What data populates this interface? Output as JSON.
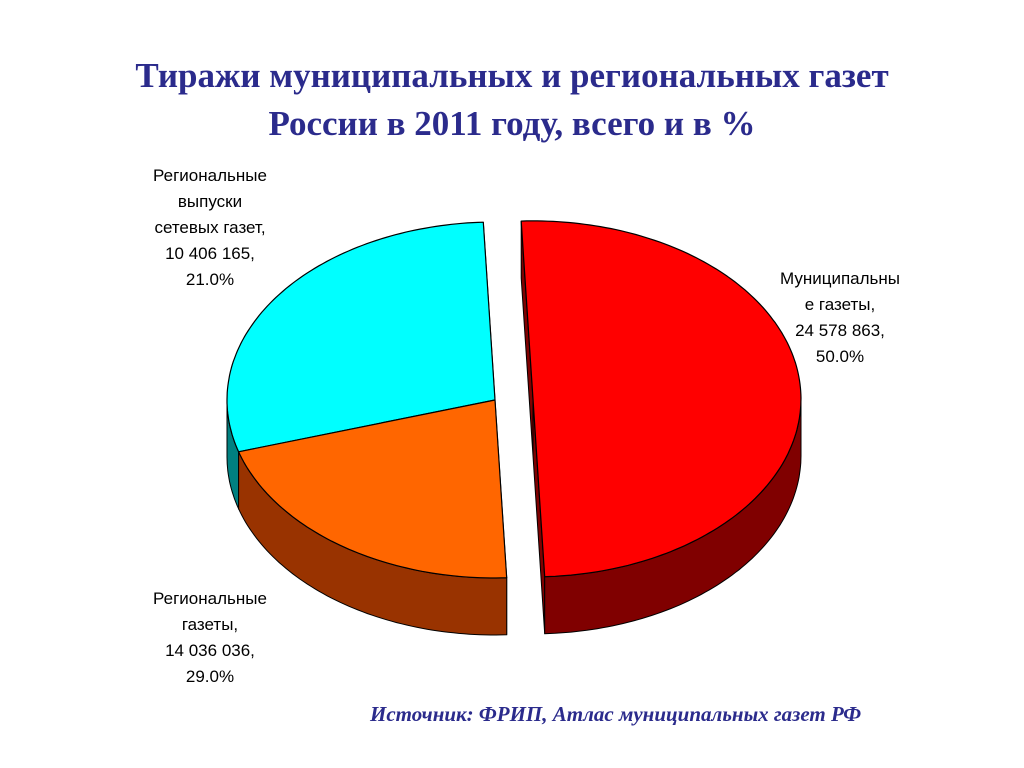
{
  "title": {
    "line1": "Тиражи муниципальных и региональных газет",
    "line2": "России в 2011 году, всего и в %"
  },
  "source": "Источник: ФРИП, Атлас муниципальных газет РФ",
  "chart_data": {
    "type": "pie",
    "title": "Тиражи муниципальных и региональных газет России в 2011 году, всего и в %",
    "three_d": true,
    "slices": [
      {
        "key": "municipal",
        "label_lines": [
          "Муниципальны",
          "е газеты,"
        ],
        "value_text": "24 578 863,",
        "percent_text": "50.0%",
        "value": 24578863,
        "percent": 50.0,
        "color": "#ff0000",
        "side_color": "#800000",
        "exploded": true
      },
      {
        "key": "regional",
        "label_lines": [
          "Региональные",
          "газеты,"
        ],
        "value_text": "14 036 036,",
        "percent_text": "29.0%",
        "value": 14036036,
        "percent": 29.0,
        "color": "#00ffff",
        "side_color": "#008080",
        "exploded": false
      },
      {
        "key": "network",
        "label_lines": [
          "Региональные",
          "выпуски",
          "сетевых газет,"
        ],
        "value_text": "10 406 165,",
        "percent_text": "21.0%",
        "value": 10406165,
        "percent": 21.0,
        "color": "#ff6600",
        "side_color": "#993300",
        "exploded": false
      }
    ]
  }
}
